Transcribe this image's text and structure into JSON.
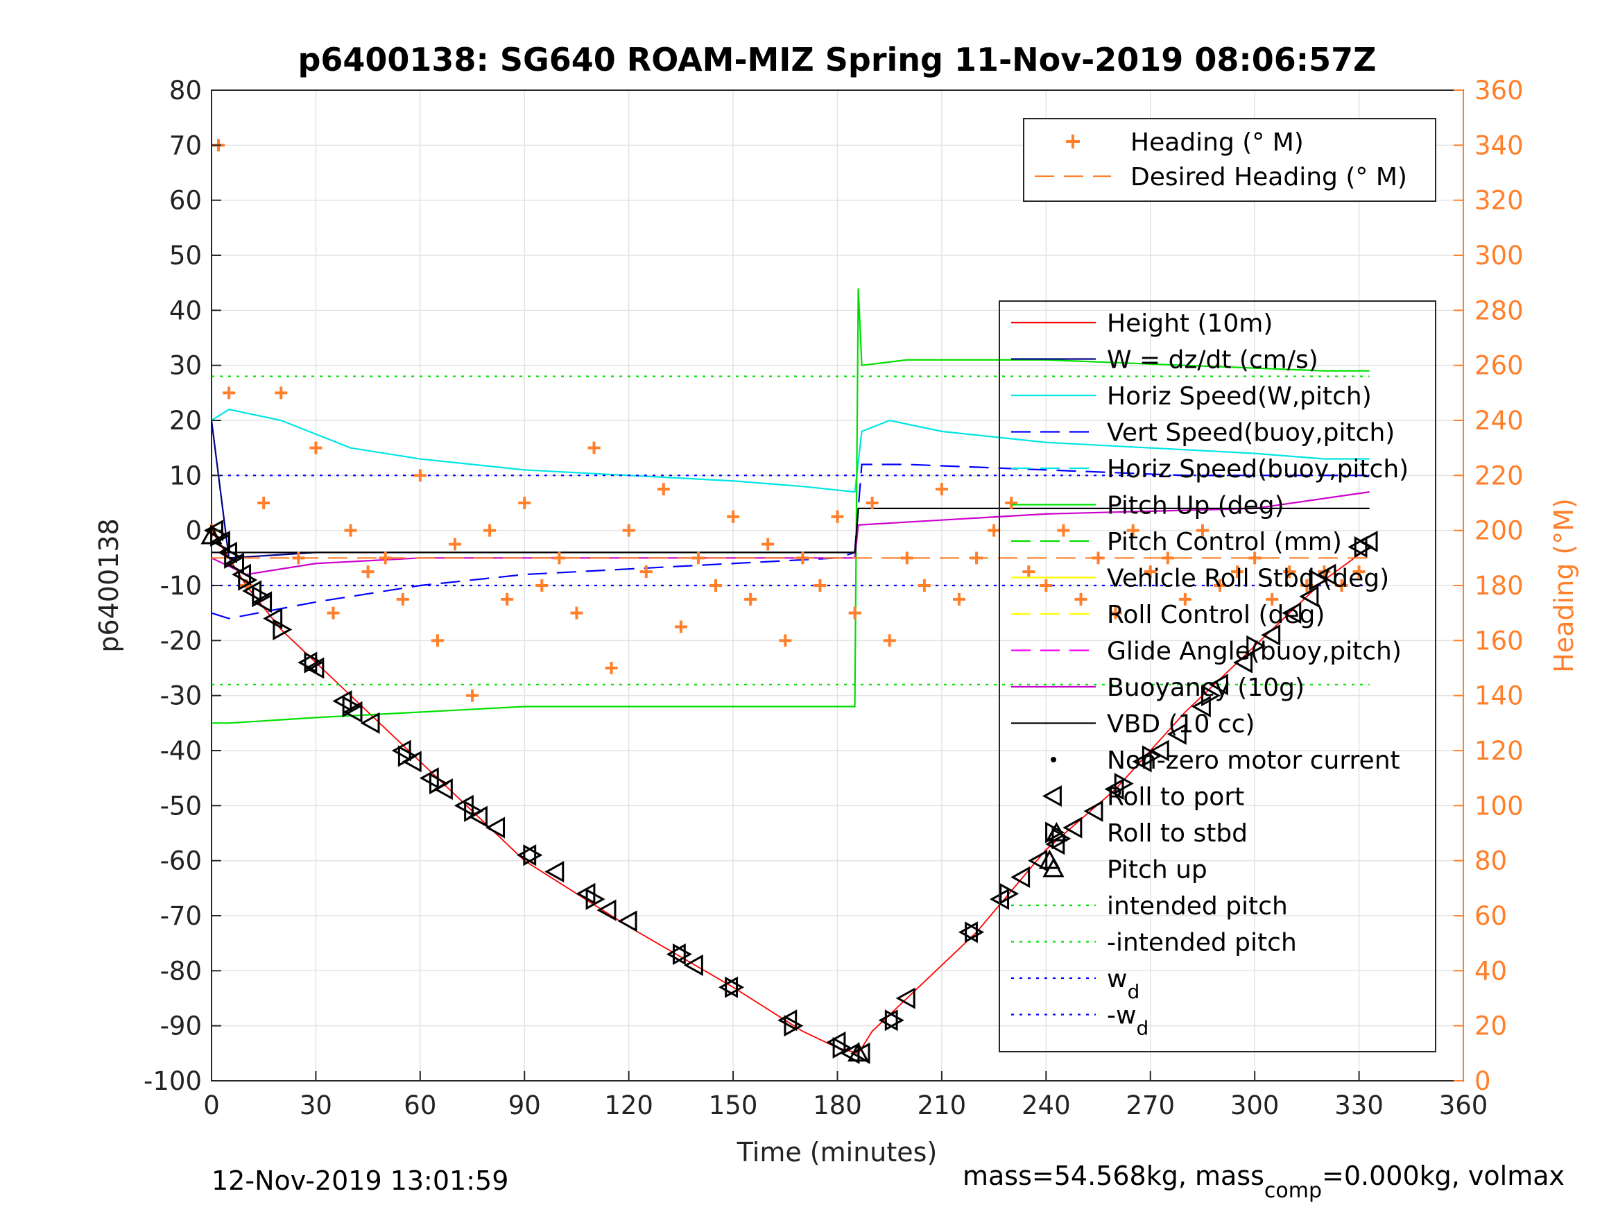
{
  "chart_data": {
    "type": "line",
    "title": "p6400138: SG640 ROAM-MIZ Spring 11-Nov-2019 08:06:57Z",
    "xlabel": "Time (minutes)",
    "ylabel": "p6400138",
    "ylabel_right": "Heading (°M)",
    "xlim": [
      0,
      360
    ],
    "ylim": [
      -100,
      80
    ],
    "ylim_right": [
      0,
      360
    ],
    "xticks": [
      "0",
      "30",
      "60",
      "90",
      "120",
      "150",
      "180",
      "210",
      "240",
      "270",
      "300",
      "330",
      "360"
    ],
    "yticks": [
      "80",
      "70",
      "60",
      "50",
      "40",
      "30",
      "20",
      "10",
      "0",
      "-10",
      "-20",
      "-30",
      "-40",
      "-50",
      "-60",
      "-70",
      "-80",
      "-90",
      "-100"
    ],
    "yticks_right": [
      "360",
      "340",
      "320",
      "300",
      "280",
      "260",
      "240",
      "220",
      "200",
      "180",
      "160",
      "140",
      "120",
      "100",
      "80",
      "60",
      "40",
      "20",
      "0"
    ],
    "grid": true,
    "legend_top": [
      {
        "label": "Heading (° M)",
        "color": "#ff7f2a",
        "style": "plus"
      },
      {
        "label": "Desired Heading (° M)",
        "color": "#ff7f2a",
        "style": "dashed"
      }
    ],
    "legend_main": [
      {
        "label": "Height (10m)",
        "color": "#ff0000",
        "style": "solid"
      },
      {
        "label": "W = dz/dt (cm/s)",
        "color": "#00008b",
        "style": "solid"
      },
      {
        "label": "Horiz Speed(W,pitch)",
        "color": "#00e5e5",
        "style": "solid"
      },
      {
        "label": "Vert Speed(buoy,pitch)",
        "color": "#0000ff",
        "style": "dashed"
      },
      {
        "label": "Horiz Speed(buoy,pitch)",
        "color": "#00e5e5",
        "style": "dashed"
      },
      {
        "label": "Pitch Up (deg)",
        "color": "#00e000",
        "style": "solid"
      },
      {
        "label": "Pitch Control (mm)",
        "color": "#00e000",
        "style": "dashed"
      },
      {
        "label": "Vehicle Roll Stbd (deg)",
        "color": "#ffff00",
        "style": "solid"
      },
      {
        "label": "Roll Control (deg)",
        "color": "#ffff00",
        "style": "dashed"
      },
      {
        "label": "Glide Angle(buoy,pitch)",
        "color": "#ff00ff",
        "style": "dashed"
      },
      {
        "label": "Buoyancy (10g)",
        "color": "#cc00cc",
        "style": "solid"
      },
      {
        "label": "VBD (10 cc)",
        "color": "#000000",
        "style": "solid"
      },
      {
        "label": "Non-zero motor current",
        "color": "#000000",
        "style": "dot"
      },
      {
        "label": "Roll to port",
        "color": "#000000",
        "style": "tri-left"
      },
      {
        "label": "Roll to stbd",
        "color": "#000000",
        "style": "tri-right"
      },
      {
        "label": "Pitch up",
        "color": "#000000",
        "style": "tri-up"
      },
      {
        "label": "intended pitch",
        "color": "#00e000",
        "style": "dotted"
      },
      {
        "label": "-intended pitch",
        "color": "#00e000",
        "style": "dotted"
      },
      {
        "label": "w_d",
        "color": "#0000ff",
        "style": "dotted"
      },
      {
        "label": "-w_d",
        "color": "#0000ff",
        "style": "dotted"
      }
    ],
    "series": [
      {
        "name": "Height (10m)",
        "color": "#ff0000",
        "x": [
          0,
          5,
          10,
          20,
          30,
          60,
          90,
          120,
          150,
          170,
          180,
          186,
          190,
          200,
          220,
          240,
          260,
          280,
          300,
          320,
          333
        ],
        "y": [
          0,
          -5,
          -10,
          -18,
          -24,
          -42,
          -60,
          -72,
          -83,
          -91,
          -94,
          -95,
          -91,
          -85,
          -73,
          -58,
          -47,
          -33,
          -21,
          -9,
          -3
        ]
      },
      {
        "name": "W = dz/dt (cm/s)",
        "color": "#00008b",
        "x": [
          0,
          5,
          30,
          60,
          90,
          120,
          150,
          180,
          185,
          186,
          200,
          240,
          280,
          320,
          333
        ],
        "y": [
          20,
          -5,
          -4,
          -4,
          -4,
          -4,
          -4,
          -4,
          -4,
          4,
          4,
          4,
          4,
          4,
          4
        ]
      },
      {
        "name": "Horiz Speed(W,pitch)",
        "color": "#00e5e5",
        "x": [
          0,
          5,
          20,
          40,
          60,
          90,
          120,
          150,
          170,
          185,
          187,
          195,
          210,
          240,
          270,
          300,
          320,
          333
        ],
        "y": [
          20,
          22,
          20,
          15,
          13,
          11,
          10,
          9,
          8,
          7,
          18,
          20,
          18,
          16,
          15,
          14,
          13,
          13
        ]
      },
      {
        "name": "Vert Speed(buoy,pitch)",
        "color": "#0000ff",
        "x": [
          0,
          5,
          30,
          60,
          90,
          120,
          150,
          180,
          185,
          187,
          200,
          240,
          280,
          320,
          333
        ],
        "y": [
          -15,
          -16,
          -13,
          -10,
          -8,
          -7,
          -6,
          -5,
          -4,
          12,
          12,
          11,
          10,
          10,
          10
        ]
      },
      {
        "name": "Pitch Up (deg)",
        "color": "#00e000",
        "x": [
          0,
          5,
          30,
          60,
          90,
          120,
          150,
          180,
          185,
          186,
          187,
          200,
          240,
          280,
          320,
          333
        ],
        "y": [
          -35,
          -35,
          -34,
          -33,
          -32,
          -32,
          -32,
          -32,
          -32,
          44,
          30,
          31,
          31,
          30,
          29,
          29
        ]
      },
      {
        "name": "Buoyancy (10g)",
        "color": "#cc00cc",
        "x": [
          0,
          10,
          30,
          60,
          120,
          180,
          185,
          186,
          240,
          300,
          333
        ],
        "y": [
          -5,
          -8,
          -6,
          -5,
          -5,
          -5,
          -5,
          1,
          3,
          4,
          7
        ]
      },
      {
        "name": "VBD (10 cc)",
        "color": "#000000",
        "x": [
          0,
          5,
          30,
          90,
          180,
          185,
          186,
          240,
          300,
          333
        ],
        "y": [
          -4,
          -4,
          -4,
          -4,
          -4,
          -4,
          4,
          4,
          4,
          4
        ]
      },
      {
        "name": "intended pitch",
        "color": "#00e000",
        "x": [
          0,
          333
        ],
        "y": [
          28,
          28
        ]
      },
      {
        "name": "-intended pitch",
        "color": "#00e000",
        "x": [
          0,
          333
        ],
        "y": [
          -28,
          -28
        ]
      },
      {
        "name": "w_d",
        "color": "#0000ff",
        "x": [
          0,
          333
        ],
        "y": [
          10,
          10
        ]
      },
      {
        "name": "-w_d",
        "color": "#0000ff",
        "x": [
          0,
          333
        ],
        "y": [
          -10,
          -10
        ]
      },
      {
        "name": "Heading (° M)",
        "color": "#ff7f2a",
        "axis": "right",
        "x": [
          0,
          2,
          5,
          10,
          15,
          20,
          25,
          30,
          35,
          40,
          45,
          50,
          55,
          60,
          65,
          70,
          75,
          80,
          85,
          90,
          95,
          100,
          105,
          110,
          115,
          120,
          125,
          130,
          135,
          140,
          145,
          150,
          155,
          160,
          165,
          170,
          175,
          180,
          185,
          190,
          195,
          200,
          205,
          210,
          215,
          220,
          225,
          230,
          235,
          240,
          245,
          250,
          255,
          260,
          265,
          270,
          275,
          280,
          285,
          290,
          295,
          300,
          305,
          310,
          315,
          320,
          325,
          330
        ],
        "y": [
          200,
          340,
          250,
          180,
          210,
          250,
          190,
          230,
          170,
          200,
          185,
          190,
          175,
          220,
          160,
          195,
          140,
          200,
          175,
          210,
          180,
          190,
          170,
          230,
          150,
          200,
          185,
          215,
          165,
          190,
          180,
          205,
          175,
          195,
          160,
          190,
          180,
          205,
          170,
          210,
          160,
          190,
          180,
          215,
          175,
          190,
          200,
          210,
          185,
          180,
          200,
          175,
          190,
          170,
          200,
          185,
          190,
          175,
          200,
          180,
          185,
          190,
          175,
          185,
          180,
          185,
          180,
          185
        ]
      },
      {
        "name": "Desired Heading (° M)",
        "color": "#ff7f2a",
        "axis": "right",
        "x": [
          0,
          333
        ],
        "y": [
          190,
          190
        ]
      }
    ],
    "markers_roll_port": {
      "x": [
        1,
        3,
        5,
        7,
        9,
        12,
        15,
        18,
        28,
        30,
        38,
        41,
        46,
        55,
        58,
        63,
        67,
        73,
        77,
        82,
        91,
        99,
        108,
        114,
        120,
        134,
        139,
        149,
        166,
        180,
        184,
        187,
        195,
        200,
        218,
        227,
        233,
        238,
        243,
        248,
        254,
        260,
        268,
        273,
        278,
        285,
        290,
        297,
        305,
        311,
        316,
        321,
        330,
        333
      ],
      "y": [
        0,
        -2,
        -4,
        -6,
        -8,
        -11,
        -13,
        -16,
        -24,
        -25,
        -31,
        -33,
        -35,
        -40,
        -42,
        -45,
        -47,
        -50,
        -52,
        -54,
        -59,
        -62,
        -66,
        -69,
        -71,
        -77,
        -79,
        -83,
        -89,
        -93,
        -95,
        -95,
        -89,
        -85,
        -73,
        -67,
        -63,
        -60,
        -57,
        -54,
        -51,
        -47,
        -42,
        -40,
        -37,
        -32,
        -28,
        -24,
        -19,
        -15,
        -12,
        -8,
        -3,
        -2
      ]
    },
    "markers_roll_stbd": {
      "x": [
        2,
        6,
        10,
        14,
        20,
        29,
        40,
        56,
        65,
        75,
        92,
        110,
        135,
        150,
        167,
        181,
        196,
        219,
        229,
        244,
        262,
        270,
        287,
        300,
        318,
        331
      ],
      "y": [
        -1,
        -5,
        -9,
        -12,
        -18,
        -24,
        -32,
        -41,
        -46,
        -51,
        -59,
        -67,
        -77,
        -83,
        -90,
        -94,
        -89,
        -73,
        -66,
        -56,
        -46,
        -41,
        -30,
        -21,
        -9,
        -3
      ]
    },
    "markers_pitch_up": {
      "x": [
        0,
        186,
        241,
        243
      ],
      "y": [
        -1,
        -95,
        -60,
        -55
      ]
    }
  },
  "footer": {
    "timestamp": "12-Nov-2019 13:01:59",
    "mass_text": "mass=54.568kg, mass",
    "mass_sub": "comp",
    "mass_rest": "=0.000kg, volmax"
  }
}
